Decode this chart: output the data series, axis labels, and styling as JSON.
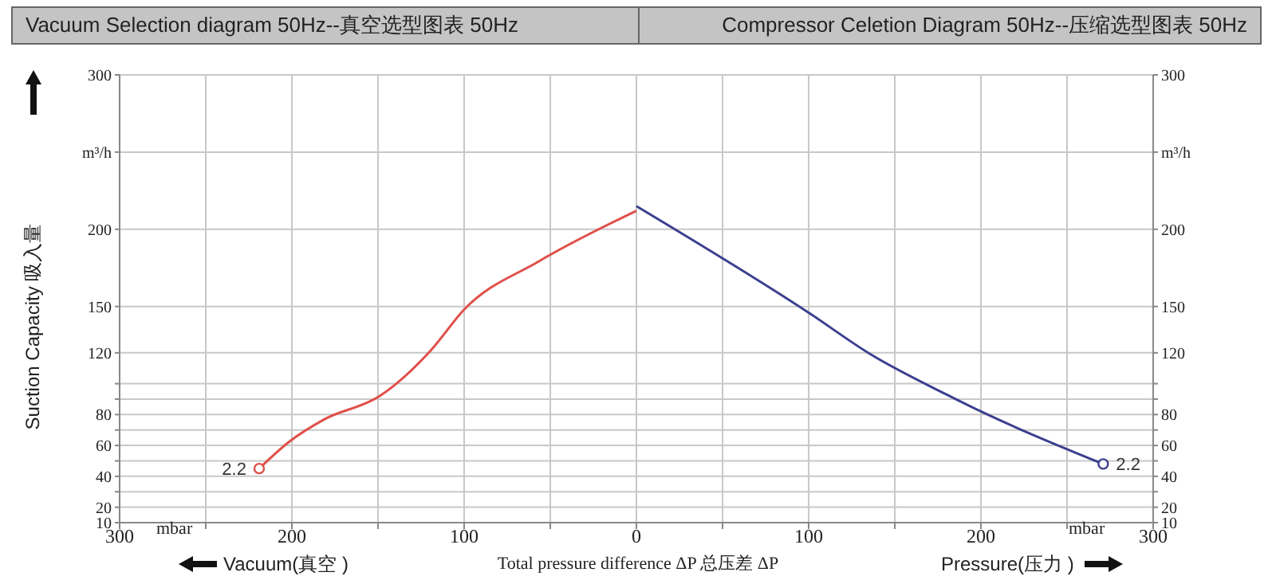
{
  "chart_data": {
    "type": "line",
    "title": "Vacuum Selection diagram 50Hz--真空选型图表  50Hz",
    "subtitle": "Compressor Celetion Diagram 50Hz--压缩选型图表 50Hz",
    "xlabel": "Total pressure difference ΔP 总压差 ΔP",
    "ylabel": "Suction Capacity 吸入量",
    "xlim": [
      -300,
      300
    ],
    "xticks": [
      {
        "value": -300,
        "label": "300"
      },
      {
        "value": -250,
        "label": null
      },
      {
        "value": -200,
        "label": "200"
      },
      {
        "value": -150,
        "label": null
      },
      {
        "value": -100,
        "label": "100"
      },
      {
        "value": -50,
        "label": null
      },
      0,
      {
        "value": 50,
        "label": null
      },
      100,
      {
        "value": 150,
        "label": null
      },
      200,
      {
        "value": 250,
        "label": null
      },
      300
    ],
    "ylim": [
      10,
      300
    ],
    "yticks": [
      10,
      20,
      {
        "value": 30,
        "label": null
      },
      40,
      {
        "value": 50,
        "label": null
      },
      60,
      {
        "value": 70,
        "label": null
      },
      80,
      {
        "value": 90,
        "label": null
      },
      {
        "value": 100,
        "label": null
      },
      120,
      150,
      200,
      {
        "value": 250,
        "label": "m³/h"
      },
      300
    ],
    "y2lim": [
      10,
      300
    ],
    "y2ticks": [
      10,
      20,
      {
        "value": 30,
        "label": null
      },
      40,
      {
        "value": 50,
        "label": null
      },
      60,
      {
        "value": 70,
        "label": null
      },
      80,
      {
        "value": 90,
        "label": null
      },
      {
        "value": 100,
        "label": null
      },
      120,
      150,
      200,
      {
        "value": 250,
        "label": "m³/h"
      },
      300
    ],
    "grid": true,
    "marker": "none",
    "line_style": "solid",
    "series": [
      {
        "color": "#e0504a",
        "x": [
          -219,
          -202,
          -181,
          -149,
          -119,
          -100,
          -57,
          0
        ],
        "values": [
          45,
          62,
          77,
          92,
          122,
          148,
          179,
          212
        ]
      },
      {
        "color": "#3c3f8f",
        "x": [
          0,
          100,
          136,
          180,
          200,
          271
        ],
        "values": [
          215,
          146,
          119,
          93,
          82,
          48
        ]
      }
    ],
    "annotations": [
      "mbar",
      "mbar",
      "Vacuum(真空 )",
      "Pressure(压力 )",
      {
        "text": "2.2",
        "x": -219,
        "y": 45
      },
      {
        "text": "2.2",
        "x": 271,
        "y": 48
      }
    ]
  }
}
